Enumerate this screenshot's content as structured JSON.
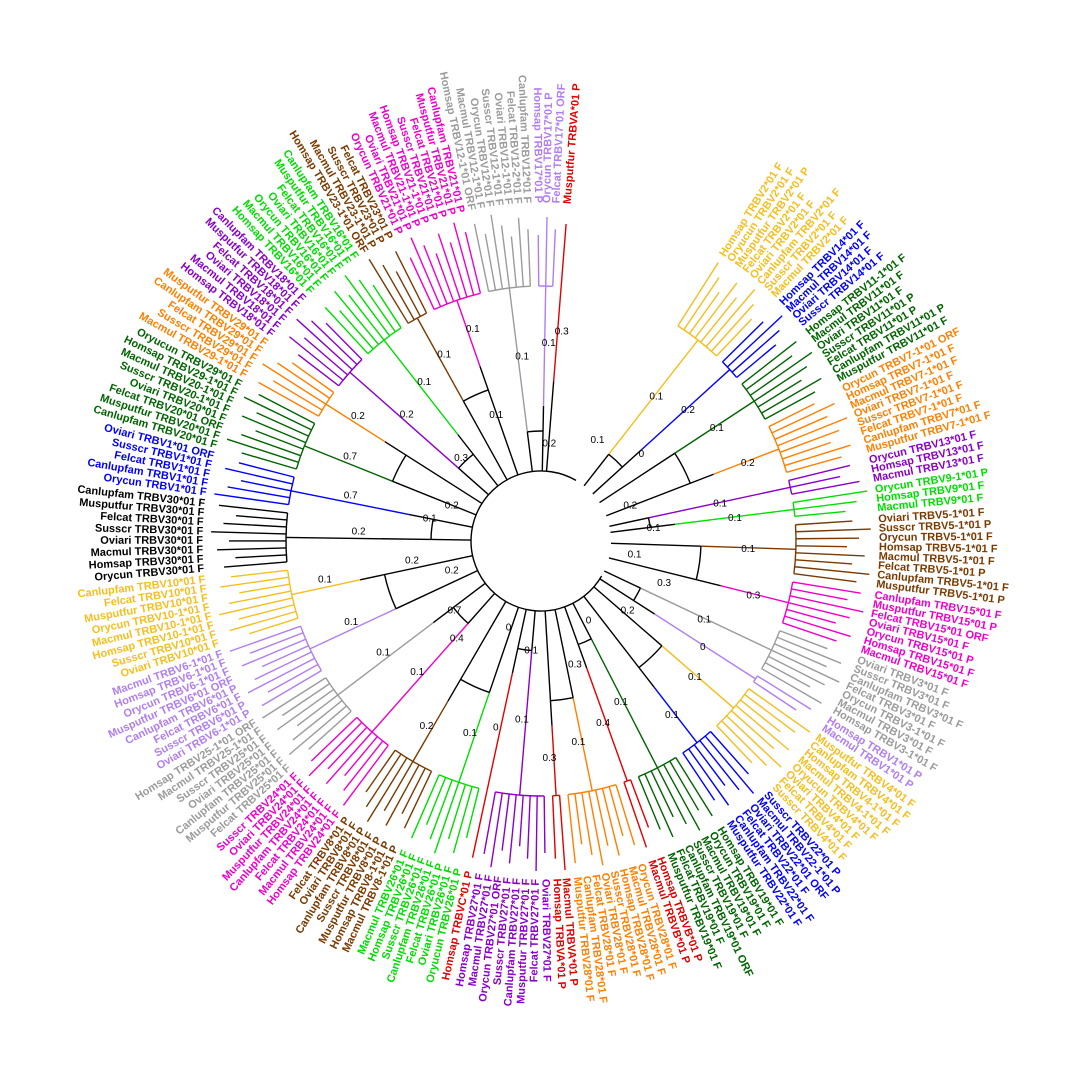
{
  "colors": {
    "black": "#000000",
    "blue": "#0000ff",
    "dkgreen": "#006400",
    "orange": "#ff7f00",
    "purple": "#8b00c9",
    "green": "#00dd00",
    "brown": "#7a3a00",
    "magenta": "#ee00cc",
    "gray": "#9b9b9b",
    "lavender": "#b07ef0",
    "red": "#e00000",
    "gold": "#f5be1e"
  },
  "groups": [
    {
      "id": "g2",
      "color": "gold",
      "branch": "0.1",
      "leaves": [
        "Homsap TRBV2*01 F",
        "Oryucun TRBV2*01 F",
        "Musputfur TRBV2*01 P",
        "Felcat TRBV2*01 F",
        "Oviari TRBV2*01 F",
        "Canlupfam TRBV2*01 F",
        "Susscr TRBV2*01 F",
        "Macmul TRBV2*01 F"
      ]
    },
    {
      "id": "g14",
      "color": "blue",
      "branch": "0.2",
      "leaves": [
        "Homsap TRBV14*01 F",
        "Macmul TRBV14*01 F",
        "Oviari TRBV14*01 F",
        "Susscr TRBV14*01 F"
      ]
    },
    {
      "id": "g11",
      "color": "dkgreen",
      "branch": "0.1",
      "leaves": [
        "Homsap TRBV11-1*01 F",
        "Macmul TRBV11*01 F",
        "Oviari TRBV11*01 F",
        "Susscr TRBV11*01 P",
        "Felcat TRBV11*01 P",
        "Canlupfam TRBV11*01 P",
        "Musputfur TRBV11*01 F"
      ]
    },
    {
      "id": "g7",
      "color": "orange",
      "branch": "0.2",
      "leaves": [
        "Orycun TRBV7-1*01 ORF",
        "Homsap TRBV7-1*01 F",
        "Macmul TRBV7-1*01 F",
        "Oviari TRBV7-1*01 F",
        "Susscr TRBV7-1*01 F",
        "Felcat TRBV7-1*01 F",
        "Canlupfam TRBV7*01 F",
        "Musputfur TRBV7-1*01 F"
      ]
    },
    {
      "id": "g13",
      "color": "purple",
      "branch": "0.1",
      "leaves": [
        "Orycun TRBV13*01 F",
        "Homsap TRBV13*01 F",
        "Macmul TRBV13*01 F"
      ]
    },
    {
      "id": "g9",
      "color": "green",
      "branch": "0.1",
      "leaves": [
        "Orycun TRBV9-1*01 P",
        "Homsap TRBV9*01 F",
        "Macmul TRBV9*01 F"
      ]
    },
    {
      "id": "g5",
      "color": "brown",
      "branch": "0.1",
      "leaves": [
        "Oviari TRBV5-1*01 F",
        "Susscr TRBV5-1*01 P",
        "Orycun TRBV5-1*01 F",
        "Homsap TRBV5-1*01 F",
        "Macmul TRBV5-1*01 F",
        "Felcat TRBV5-1*01 P",
        "Canlupfam TRBV5-1*01 F",
        "Musputfur TRBV5-1*01 P"
      ]
    },
    {
      "id": "g15",
      "color": "magenta",
      "branch": "0.3",
      "leaves": [
        "Canlupfam TRBV15*01 F",
        "Musputfur TRBV15*01 P",
        "Felcat TRBV15*01 ORF",
        "Oviari TRBV15*01 F",
        "Orycun TRBV15*01 P",
        "Homsap TRBV15*01 F",
        "Macmul TRBV15*01 F"
      ]
    },
    {
      "id": "g3",
      "color": "gray",
      "branch": "0.1",
      "leaves": [
        "Oviari TRBV3*01 F",
        "Susscr TRBV3*01 F",
        "Canlupfam TRBV3*01 F",
        "Felcat TRBV3*01 F",
        "Orycun TRBV3-1*01 F",
        "Macmul TRBV3*01 F",
        "Homsap TRBV3-1*01 F"
      ]
    },
    {
      "id": "g1",
      "color": "lavender",
      "branch": "0",
      "leaves": [
        "Homsap TRBV1*01 P",
        "Macmul TRBV1*01 P"
      ]
    },
    {
      "id": "g4",
      "color": "gold",
      "branch": "0.1",
      "leaves": [
        "Musputfur TRBV4*01 F",
        "Canlupfam TRBV4*01 F",
        "Homsap TRBV4-1*01 F",
        "Macmul TRBV4-1*01 F",
        "Oryucun TRBV4*01 F",
        "Oviari TRBV4*01 F",
        "Felcat TRBV4*01 F",
        "Susscr TRBV4*01 F"
      ]
    },
    {
      "id": "g22",
      "color": "blue",
      "branch": "0.1",
      "leaves": [
        "Susscr TRBV22*01 P",
        "Macmul TRBV22-1*01 P",
        "Oviari TRBV22*01 ORF",
        "Felcat TRBV22*01 F",
        "Canlupfam TRBV22*01 F",
        "Musputfur TRBV22*01 F"
      ]
    },
    {
      "id": "g19",
      "color": "dkgreen",
      "branch": "0.1",
      "leaves": [
        "Homsap TRBV19*01 F",
        "Orycun TRBV19*01 F",
        "Macmul TRBV19*01 F",
        "Susscr TRBV19*01 F",
        "Canlupfam TRBV19*01 ORF",
        "Felcat TRBV19*01 F",
        "Musputfur TRBV19*01 F"
      ]
    },
    {
      "id": "gB",
      "color": "red",
      "branch": "0.4",
      "leaves": [
        "Homsap TRBVB*01 P",
        "Macmul TRBVB*01 P"
      ]
    },
    {
      "id": "g28",
      "color": "orange",
      "branch": "0.1",
      "leaves": [
        "Orycun TRBV28*01 F",
        "Macmul TRBV28*01 F",
        "Homsap TRBV28*01 F",
        "Susscr TRBV28*01 F",
        "Oviari TRBV28*01 F",
        "Felcat TRBV28*01 F",
        "Canlupfam TRBV28*01 F",
        "Musputfur TRBV28*01 F"
      ]
    },
    {
      "id": "gA",
      "color": "red",
      "branch": "0.3",
      "leaves": [
        "Macmul TRBVA*01 P",
        "Homsap TRBVA*01 P"
      ]
    },
    {
      "id": "g27",
      "color": "purple",
      "branch": "0.1",
      "leaves": [
        "Oviari TRBV27*01 F",
        "Felcat TRBV27*01 F",
        "Musputfur TRBV27*01 F",
        "Canlupfam TRBV27*01 F",
        "Susscr TRBV27*01 F",
        "Orycun TRBV27*01 ORF",
        "Macmul TRBV27*01 F",
        "Homsap TRBV27*01 F"
      ]
    },
    {
      "id": "gC",
      "color": "red",
      "branch": "0",
      "leaves": [
        "Homsap TRBVC*01 P"
      ]
    },
    {
      "id": "g26",
      "color": "green",
      "branch": "0.1",
      "leaves": [
        "Oryucun TRBV26*01 P",
        "Oviari TRBV26*01 F",
        "Felcat TRBV26*01 P",
        "Canlupfam TRBV26*01 F",
        "Susscr TRBV26*01 F",
        "Homsap TRBV26*01 F",
        "Macmul TRBV26*01 F"
      ]
    },
    {
      "id": "g8",
      "color": "brown",
      "branch": "0.2",
      "leaves": [
        "Macmul TRBV8-1*01 P",
        "Homsap TRBV8-1*01 P",
        "Musputfur TRBV8*01 P",
        "Susscr TRBV8*01 F",
        "Canlupfam TRBV8*01 P",
        "Oviari TRBV8*01 F",
        "Felcat TRBV8*01 P"
      ]
    },
    {
      "id": "g24",
      "color": "magenta",
      "branch": "0.1",
      "leaves": [
        "Homsap TRBV24*01 F",
        "Macmul TRBV24*01 F",
        "Felcat TRBV24*01 F",
        "Canlupfam TRBV24*01 F",
        "Musputfur TRBV24*01 F",
        "Oviari TRBV24*01 F",
        "Susscr TRBV24*01 F"
      ]
    },
    {
      "id": "g25",
      "color": "gray",
      "branch": "0.1",
      "leaves": [
        "Felcat TRBV25*01 F",
        "Musputfur TRBV25*01 F",
        "Canlupfam TRBV25*01 F",
        "Oviari TRBV25*01 F",
        "Susscr TRBV25*01 F",
        "Macmul TRBV25-1*01 F",
        "Homsap TRBV25-1*01 ORF"
      ]
    },
    {
      "id": "g6",
      "color": "lavender",
      "branch": "0.1",
      "leaves": [
        "Oviari TRBV6-1*01 P",
        "Susscr TRBV6*01 P",
        "Felcat TRBV6*01 F",
        "Canlupfam TRBV6*01 P",
        "Musputfur TRBV6*01 ORF",
        "Orycun TRBV6-1*01 F",
        "Homsap TRBV6-1*01 F",
        "Macmul TRBV6-1*01 F"
      ]
    },
    {
      "id": "g10",
      "color": "gold",
      "branch": "0.1",
      "leaves": [
        "Oviari TRBV10*01 F",
        "Susscr TRBV10*01 F",
        "Homsap TRBV10-1*01 F",
        "Macmul TRBV10-1*01 F",
        "Orycun TRBV10-1*01 F",
        "Musputfur TRBV10*01 F",
        "Felcat TRBV10*01 F",
        "Canlupfam TRBV10*01 F"
      ]
    },
    {
      "id": "g30",
      "color": "black",
      "branch": "0.2",
      "leaves": [
        "Orycun TRBV30*01 F",
        "Homsap TRBV30*01 F",
        "Macmul TRBV30*01 F",
        "Oviari TRBV30*01 F",
        "Susscr TRBV30*01 F",
        "Felcat TRBV30*01 F",
        "Musputfur TRBV30*01 F",
        "Canlupfam TRBV30*01 F"
      ]
    },
    {
      "id": "g1x",
      "color": "blue",
      "branch": "0.7",
      "leaves": [
        "Orycun TRBV1*01 F",
        "Canlupfam TRBV1*01 F",
        "Felcat TRBV1*01 F",
        "Susscr TRBV1*01 F",
        "Oviari TRBV1*01 ORF"
      ]
    },
    {
      "id": "g20",
      "color": "dkgreen",
      "branch": "0.7",
      "leaves": [
        "Canlupfam TRBV20*01 F",
        "Musputfur TRBV20*01 F",
        "Felcat TRBV20*01 ORF",
        "Oviari TRBV20*01 F",
        "Susscr TRBV20-1*01 F",
        "Macmul TRBV20-1*01 F",
        "Homsap TRBV29-1*01 F",
        "Oryucun TRBV29*01 F"
      ]
    },
    {
      "id": "g29",
      "color": "orange",
      "branch": "0.2",
      "leaves": [
        "Macmul TRBV29-1*01 F",
        "Susscr TRBV29*01 F",
        "Felcat TRBV29*01 F",
        "Canlupfam TRBV29*01 F",
        "Musputfur TRBV29*01 F"
      ]
    },
    {
      "id": "g18",
      "color": "purple",
      "branch": "0.2",
      "leaves": [
        "Homsap TRBV18*01 F",
        "Macmul TRBV18*01 F",
        "Oviari TRBV18*01 F",
        "Felcat TRBV18*01 F",
        "Musputfur TRBV18*01 F",
        "Canlupfam TRBV18*01 F"
      ]
    },
    {
      "id": "g16",
      "color": "green",
      "branch": "0.1",
      "leaves": [
        "Homsap TRBV16*01 F",
        "Macmul TRBV16*01 F",
        "Orycun TRBV16*01 F",
        "Oviari TRBV16*01 F",
        "Felcat TRBV16*01 F",
        "Musputfur TRBV16*01 F",
        "Canlupfam TRBV16*01 F"
      ]
    },
    {
      "id": "g23",
      "color": "brown",
      "branch": "0.1",
      "leaves": [
        "Homsap TRBV23-1*01 ORF",
        "Macmul TRBV23-1*01 P",
        "Susscr TRBV23*01 P",
        "Felcat TRBV23*01 P"
      ]
    },
    {
      "id": "g21",
      "color": "magenta",
      "branch": "0.1",
      "leaves": [
        "Orycun TRBV21*01 P",
        "Oviari TRBV21*01 P",
        "Macmul TRBV21-1*01 P",
        "Homsap TRBV21-1*01 P",
        "Susscr TRBV21*01 P",
        "Felcat TRBV21*01 P",
        "Musputfur TRBV21*01 P",
        "Canlupfam TRBV21*01 P"
      ]
    },
    {
      "id": "g12",
      "color": "gray",
      "branch": "0.1",
      "leaves": [
        "Homsap TRBV12-1*01 ORF",
        "Macmul TRBV12-1*01 F",
        "Orycun TRBV12*01 F",
        "Susscr TRBV12-1*01 F",
        "Oviari TRBV12-1*01 F",
        "Felcat TRBV12-2*01 F",
        "Canlupfam TRBV12*01 F"
      ]
    },
    {
      "id": "g17",
      "color": "lavender",
      "branch": "0.1",
      "leaves": [
        "Homsap TRBV17*01 P",
        "Orycun TRBV17*01 P",
        "Felcat TRBV17*01 ORF"
      ]
    },
    {
      "id": "gMA",
      "color": "red",
      "branch": "0.3",
      "leaves": [
        "Musputfur TRBVA*01 P"
      ]
    }
  ],
  "branch_labels": [
    "0.1",
    "0.2",
    "0.3",
    "0",
    "0.7",
    "0.2",
    "0.2",
    "0.3",
    "0.1",
    "0.2",
    "0.1",
    "0",
    "0.2",
    "0.1",
    "0.3",
    "0",
    "0.1",
    "0.4",
    "0.2",
    "0.1"
  ]
}
